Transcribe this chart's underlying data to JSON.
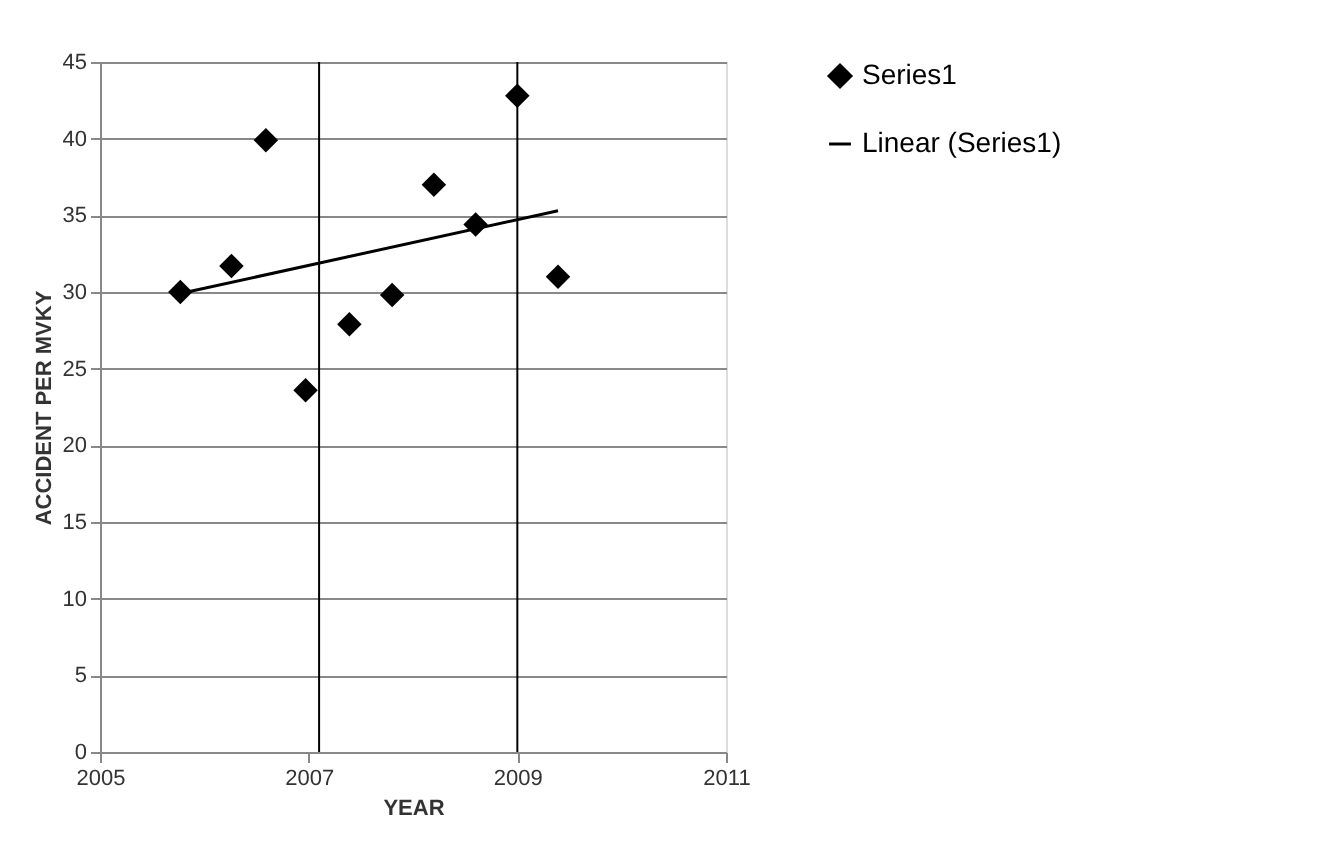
{
  "chart_data": {
    "type": "scatter",
    "xlabel": "YEAR",
    "ylabel": "ACCIDENT PER MVKY",
    "series": [
      {
        "name": "Series1",
        "color": "#000000",
        "marker": "diamond",
        "x": [
          2005.77,
          2006.26,
          2006.59,
          2006.97,
          2007.39,
          2007.8,
          2008.2,
          2008.6,
          2009.0,
          2009.39
        ],
        "values": [
          30,
          31.7,
          39.9,
          23.6,
          27.9,
          29.8,
          37,
          34.4,
          42.8,
          31
        ]
      },
      {
        "name": "Linear (Series1)",
        "type": "line",
        "color": "#000000",
        "line_style": "solid",
        "x": [
          2005.77,
          2009.39
        ],
        "values": [
          29.9,
          35.3
        ]
      }
    ],
    "ref_lines": [
      {
        "axis": "x",
        "value": 2007.1,
        "color": "#000000"
      },
      {
        "axis": "x",
        "value": 2009,
        "color": "#000000"
      }
    ],
    "xlim": [
      2005,
      2011
    ],
    "xticks": [
      2005,
      2007,
      2009,
      2011
    ],
    "ylim": [
      0,
      45
    ],
    "yticks": [
      0,
      5,
      10,
      15,
      20,
      25,
      30,
      35,
      40,
      45
    ],
    "grid": "y",
    "legend": "right"
  }
}
